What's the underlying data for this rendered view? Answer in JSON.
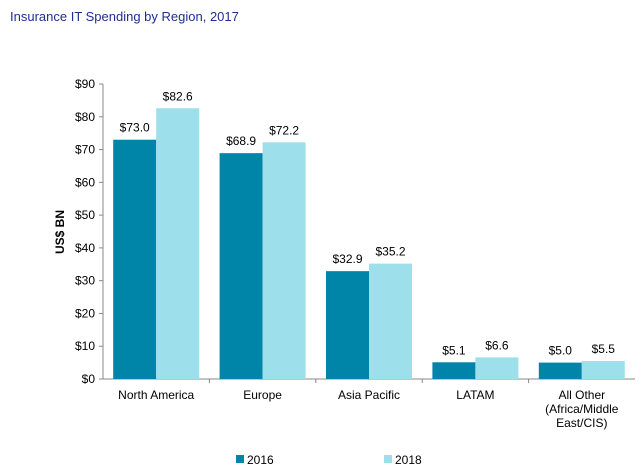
{
  "chart_data": {
    "type": "bar",
    "title": "Insurance  IT  Spending by Region, 2017",
    "ylabel": "US$ BN",
    "xlabel": "",
    "ylim": [
      0,
      90
    ],
    "yticks": [
      0,
      10,
      20,
      30,
      40,
      50,
      60,
      70,
      80,
      90
    ],
    "ytick_labels": [
      "$0",
      "$10",
      "$20",
      "$30",
      "$40",
      "$50",
      "$60",
      "$70",
      "$80",
      "$90"
    ],
    "categories": [
      "North America",
      "Europe",
      "Asia Pacific",
      "LATAM",
      "All Other (Africa/Middle East/CIS)"
    ],
    "category_lines": [
      [
        "North America"
      ],
      [
        "Europe"
      ],
      [
        "Asia Pacific"
      ],
      [
        "LATAM"
      ],
      [
        "All Other",
        "(Africa/Middle",
        "East/CIS)"
      ]
    ],
    "series": [
      {
        "name": "2016",
        "color": "#0084a8",
        "values": [
          73.0,
          68.9,
          32.9,
          5.1,
          5.0
        ],
        "labels": [
          "$73.0",
          "$68.9",
          "$32.9",
          "$5.1",
          "$5.0"
        ]
      },
      {
        "name": "2018",
        "color": "#9ddfeb",
        "values": [
          82.6,
          72.2,
          35.2,
          6.6,
          5.5
        ],
        "labels": [
          "$82.6",
          "$72.2",
          "$35.2",
          "$6.6",
          "$5.5"
        ]
      }
    ],
    "grid": false,
    "legend_position": "bottom"
  }
}
